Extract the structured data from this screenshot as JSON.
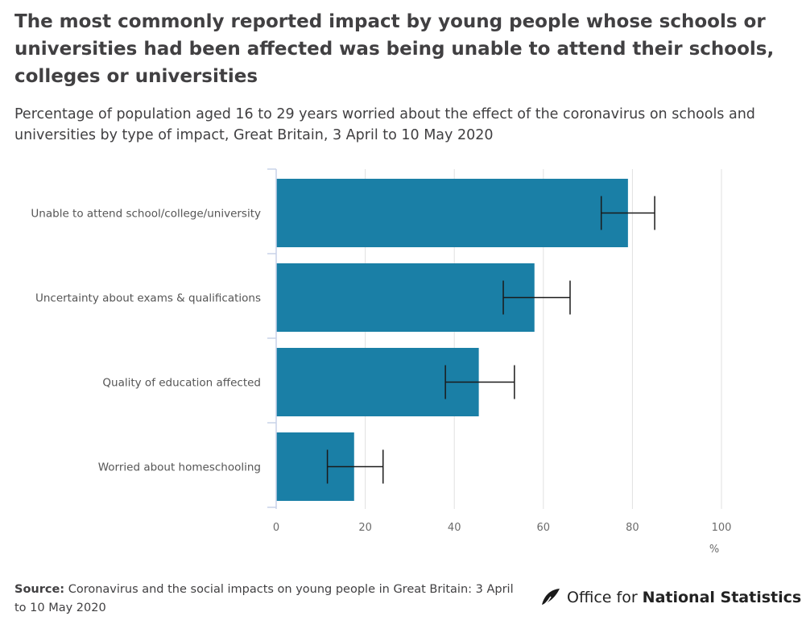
{
  "title": "The most commonly reported impact by young people whose schools or universities had been affected was being unable to attend their schools, colleges or universities",
  "subtitle": "Percentage of population aged 16 to 29 years worried about the effect of the coronavirus on schools and universities by type of impact, Great Britain, 3 April to 10 May 2020",
  "source": {
    "label": "Source:",
    "text": "Coronavirus and the social impacts on young people in Great Britain: 3 April to 10 May 2020"
  },
  "logo": {
    "text_light": "Office for ",
    "text_bold": "National Statistics",
    "icon": "ons-logo-icon"
  },
  "colors": {
    "bar": "#1a7fa6",
    "error_bar": "#1a1a1a",
    "grid": "#e0e0e0",
    "axis": "#c8d2e8"
  },
  "chart_data": {
    "type": "bar",
    "orientation": "horizontal",
    "categories": [
      "Unable to attend school/college/university",
      "Uncertainty about exams & qualifications",
      "Quality of education affected",
      "Worried about homeschooling"
    ],
    "values": [
      79,
      58,
      45.5,
      17.5
    ],
    "error_low": [
      73,
      51,
      38,
      11.5
    ],
    "error_high": [
      85,
      66,
      53.5,
      24
    ],
    "xlim": [
      0,
      100
    ],
    "xticks": [
      0,
      20,
      40,
      60,
      80,
      100
    ],
    "xlabel": "%",
    "grid": true
  }
}
